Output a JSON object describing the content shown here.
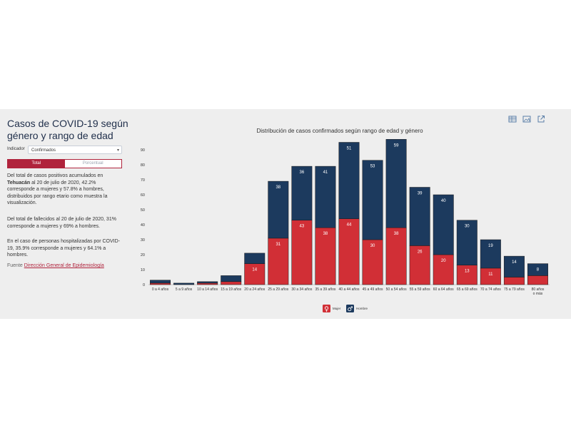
{
  "sidebar": {
    "title": "Casos de COVID-19 según género y rango de edad",
    "indicator_label": "Indicador",
    "indicator_value": "Confirmados",
    "toggle_total": "Total",
    "toggle_percent": "Porcentual",
    "p1_pre": "Del total de casos positivos acumulados en ",
    "p1_bold": "Tehuacán",
    "p1_post": " al 20 de julio de 2020, 42.2% corresponde a mujeres y 57.8% a hombres, distribuidos por rango etario como muestra la visualización.",
    "p2": "Del total de fallecidos al 20 de julio de 2020, 31% corresponde a mujeres y 69% a hombres.",
    "p3": "En el caso de personas hospitalizadas por COVID-19, 35.9% corresponde a mujeres y 64.1% a hombres.",
    "source_label": "Fuente",
    "source_link": "Dirección General de Epidemiología"
  },
  "toolbar": {
    "icons": [
      "table-icon",
      "image-icon",
      "external-link-icon"
    ]
  },
  "colors": {
    "mujer": "#d12f36",
    "hombre": "#1c3a5e",
    "accent": "#b0233c"
  },
  "chart_data": {
    "type": "bar",
    "stacked": true,
    "title": "Distribución de casos confirmados según rango de edad y género",
    "categories": [
      "0 a 4 años",
      "5 a 9 años",
      "10 a 14 años",
      "15 a 19 años",
      "20 a 24 años",
      "25 a 29 años",
      "30 a 34 años",
      "35 a 39 años",
      "40 a 44 años",
      "45 a 49 años",
      "50 a 54 años",
      "55 a 59 años",
      "60 a 64 años",
      "65 a 69 años",
      "70 a 74 años",
      "75 a 79 años",
      "80 años o más"
    ],
    "series": [
      {
        "name": "Mujer",
        "color": "#d12f36",
        "values": [
          1,
          0,
          1,
          2,
          14,
          31,
          43,
          38,
          44,
          30,
          38,
          26,
          20,
          13,
          11,
          5,
          6
        ]
      },
      {
        "name": "Hombre",
        "color": "#1c3a5e",
        "values": [
          2,
          1,
          1,
          4,
          7,
          38,
          36,
          41,
          51,
          53,
          59,
          39,
          40,
          30,
          19,
          14,
          8
        ]
      }
    ],
    "data_labels": {
      "Mujer": [
        "",
        "",
        "",
        "",
        "14",
        "31",
        "43",
        "38",
        "44",
        "30",
        "38",
        "26",
        "20",
        "13",
        "11",
        "",
        ""
      ],
      "Hombre": [
        "",
        "",
        "",
        "",
        "",
        "38",
        "36",
        "41",
        "51",
        "53",
        "59",
        "39",
        "40",
        "30",
        "19",
        "14",
        "8"
      ]
    },
    "yticks": [
      0,
      10,
      20,
      30,
      40,
      50,
      60,
      70,
      80,
      90
    ],
    "ylim": [
      0,
      100
    ],
    "grid": false,
    "legend": "bottom-center"
  }
}
